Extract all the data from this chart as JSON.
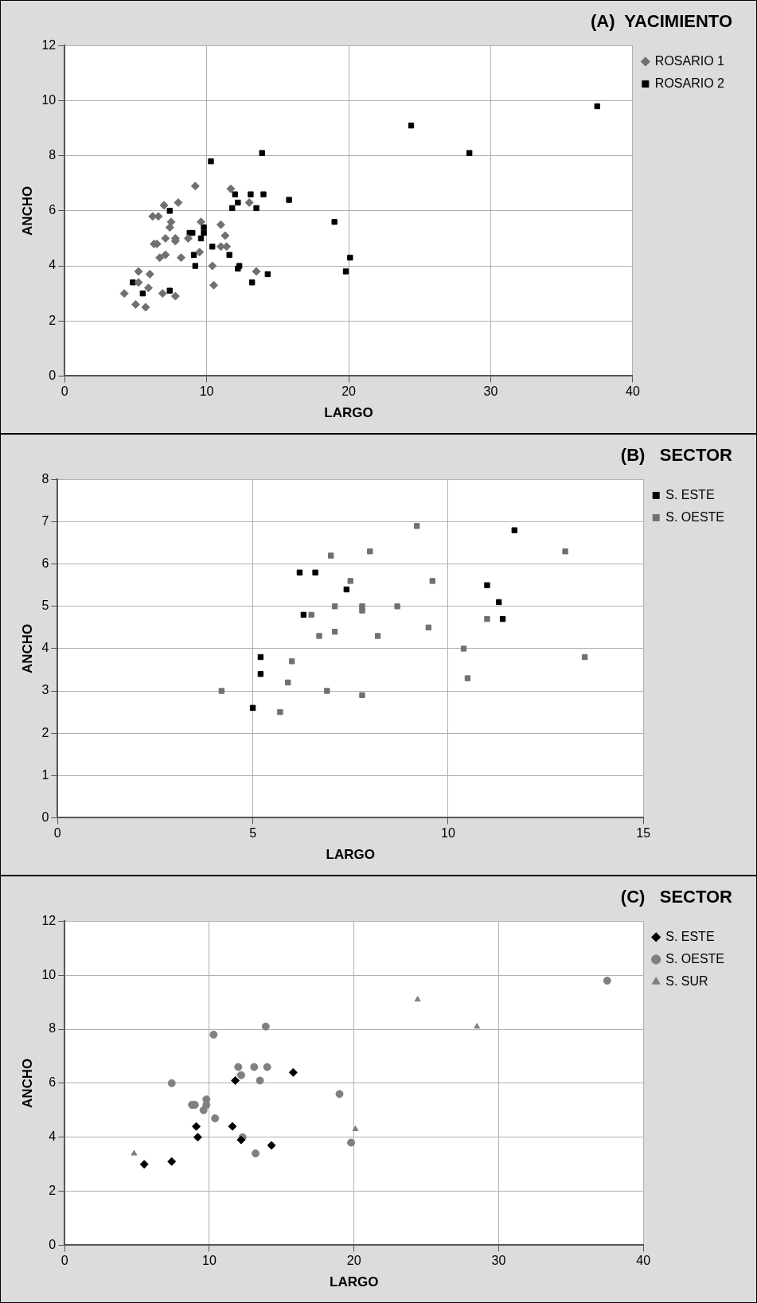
{
  "chart_data": [
    {
      "type": "scatter",
      "title": "(A)  YACIMIENTO",
      "xlabel": "LARGO",
      "ylabel": "ANCHO",
      "xlim": [
        0,
        40
      ],
      "xticks": [
        0,
        10,
        20,
        30,
        40
      ],
      "ylim": [
        0,
        12
      ],
      "yticks": [
        0,
        2,
        4,
        6,
        8,
        10,
        12
      ],
      "grid": true,
      "legend": "right",
      "series": [
        {
          "name": "ROSARIO 1",
          "color": "#707070",
          "marker": "diamond",
          "x": [
            5.0,
            5.2,
            5.2,
            6.2,
            6.6,
            6.3,
            7.4,
            11.0,
            11.3,
            11.4,
            11.7,
            4.2,
            5.7,
            5.9,
            6.0,
            6.5,
            6.7,
            6.9,
            7.0,
            7.1,
            7.1,
            7.5,
            7.8,
            7.8,
            7.8,
            8.0,
            8.2,
            8.7,
            9.2,
            9.5,
            9.6,
            10.4,
            10.5,
            11.0,
            13.0,
            13.5
          ],
          "values": [
            2.6,
            3.4,
            3.8,
            5.8,
            5.8,
            4.8,
            5.4,
            5.5,
            5.1,
            4.7,
            6.8,
            3.0,
            2.5,
            3.2,
            3.7,
            4.8,
            4.3,
            3.0,
            6.2,
            5.0,
            4.4,
            5.6,
            5.0,
            4.9,
            2.9,
            6.3,
            4.3,
            5.0,
            6.9,
            4.5,
            5.6,
            4.0,
            3.3,
            4.7,
            6.3,
            3.8
          ]
        },
        {
          "name": "ROSARIO 2",
          "color": "#000000",
          "marker": "square",
          "x": [
            5.5,
            7.4,
            9.1,
            9.2,
            11.6,
            11.8,
            12.2,
            14.3,
            15.8,
            4.8,
            20.1,
            24.4,
            28.5,
            7.4,
            8.8,
            9.0,
            9.6,
            9.8,
            9.8,
            10.3,
            10.4,
            12.0,
            12.2,
            12.3,
            13.1,
            13.5,
            13.2,
            13.9,
            14.0,
            19.0,
            19.8,
            37.5
          ],
          "values": [
            3.0,
            3.1,
            4.4,
            4.0,
            4.4,
            6.1,
            3.9,
            3.7,
            6.4,
            3.4,
            4.3,
            9.1,
            8.1,
            6.0,
            5.2,
            5.2,
            5.0,
            5.4,
            5.2,
            7.8,
            4.7,
            6.6,
            6.3,
            4.0,
            6.6,
            6.1,
            3.4,
            8.1,
            6.6,
            5.6,
            3.8,
            9.8
          ]
        }
      ]
    },
    {
      "type": "scatter",
      "title": "(B)   SECTOR",
      "xlabel": "LARGO",
      "ylabel": "ANCHO",
      "xlim": [
        0,
        15
      ],
      "xticks": [
        0,
        5,
        10,
        15
      ],
      "ylim": [
        0,
        8
      ],
      "yticks": [
        0,
        1,
        2,
        3,
        4,
        5,
        6,
        7,
        8
      ],
      "grid": true,
      "legend": "right",
      "series": [
        {
          "name": "S. ESTE",
          "color": "#000000",
          "marker": "square",
          "x": [
            5.0,
            5.2,
            5.2,
            6.2,
            6.6,
            6.3,
            7.4,
            11.0,
            11.3,
            11.4,
            11.7
          ],
          "values": [
            2.6,
            3.4,
            3.8,
            5.8,
            5.8,
            4.8,
            5.4,
            5.5,
            5.1,
            4.7,
            6.8
          ]
        },
        {
          "name": "S. OESTE",
          "color": "#707070",
          "marker": "square",
          "x": [
            4.2,
            5.7,
            5.9,
            6.0,
            6.5,
            6.7,
            6.9,
            7.0,
            7.1,
            7.1,
            7.5,
            7.8,
            7.8,
            7.8,
            8.0,
            8.2,
            8.7,
            9.2,
            9.5,
            9.6,
            10.4,
            10.5,
            11.0,
            13.0,
            13.5
          ],
          "values": [
            3.0,
            2.5,
            3.2,
            3.7,
            4.8,
            4.3,
            3.0,
            6.2,
            5.0,
            4.4,
            5.6,
            5.0,
            4.9,
            2.9,
            6.3,
            4.3,
            5.0,
            6.9,
            4.5,
            5.6,
            4.0,
            3.3,
            4.7,
            6.3,
            3.8
          ]
        }
      ]
    },
    {
      "type": "scatter",
      "title": "(C)   SECTOR",
      "xlabel": "LARGO",
      "ylabel": "ANCHO",
      "xlim": [
        0,
        40
      ],
      "xticks": [
        0,
        10,
        20,
        30,
        40
      ],
      "ylim": [
        0,
        12
      ],
      "yticks": [
        0,
        2,
        4,
        6,
        8,
        10,
        12
      ],
      "grid": true,
      "legend": "right",
      "series": [
        {
          "name": "S. ESTE",
          "color": "#000000",
          "marker": "diamond",
          "x": [
            5.5,
            7.4,
            9.1,
            9.2,
            11.6,
            11.8,
            12.2,
            14.3,
            15.8
          ],
          "values": [
            3.0,
            3.1,
            4.4,
            4.0,
            4.4,
            6.1,
            3.9,
            3.7,
            6.4
          ]
        },
        {
          "name": "S. OESTE",
          "color": "#808080",
          "marker": "circle",
          "x": [
            7.4,
            8.8,
            9.0,
            9.6,
            9.8,
            9.8,
            10.3,
            10.4,
            12.0,
            12.2,
            12.3,
            13.1,
            13.5,
            13.2,
            13.9,
            14.0,
            19.0,
            19.8,
            37.5
          ],
          "values": [
            6.0,
            5.2,
            5.2,
            5.0,
            5.4,
            5.2,
            7.8,
            4.7,
            6.6,
            6.3,
            4.0,
            6.6,
            6.1,
            3.4,
            8.1,
            6.6,
            5.6,
            3.8,
            9.8
          ]
        },
        {
          "name": "S. SUR",
          "color": "#808080",
          "marker": "triangle",
          "x": [
            4.8,
            20.1,
            24.4,
            28.5
          ],
          "values": [
            3.4,
            4.3,
            9.1,
            8.1
          ]
        }
      ]
    }
  ]
}
